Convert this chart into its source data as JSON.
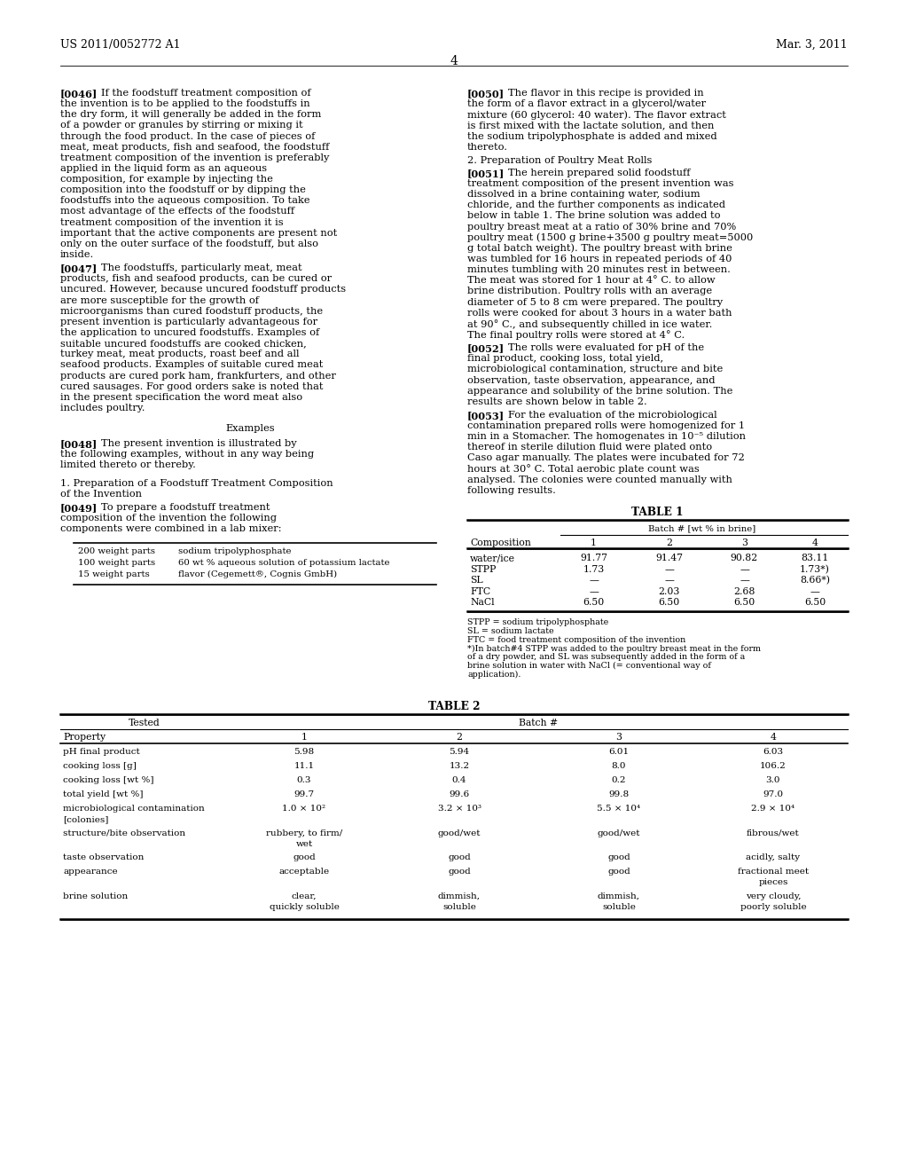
{
  "background_color": "#ffffff",
  "header_left": "US 2011/0052772 A1",
  "header_right": "Mar. 3, 2011",
  "page_number": "4",
  "recipe_box": [
    [
      "200 weight parts",
      "sodium tripolyphosphate"
    ],
    [
      "100 weight parts",
      "60 wt % aqueous solution of potassium lactate"
    ],
    [
      "15 weight parts",
      "flavor (Cegemett®, Cognis GmbH)"
    ]
  ],
  "table1_rows": [
    [
      "water/ice",
      "91.77",
      "91.47",
      "90.82",
      "83.11"
    ],
    [
      "STPP",
      "1.73",
      "—",
      "—",
      "1.73*)"
    ],
    [
      "SL",
      "—",
      "—",
      "—",
      "8.66*)"
    ],
    [
      "FTC",
      "—",
      "2.03",
      "2.68",
      "—"
    ],
    [
      "NaCl",
      "6.50",
      "6.50",
      "6.50",
      "6.50"
    ]
  ],
  "table1_footnotes": [
    "STPP = sodium tripolyphosphate",
    "SL = sodium lactate",
    "FTC = food treatment composition of the invention",
    "*)In batch#4 STPP was added to the poultry breast meat in the form of a dry powder, and SL was subsequently added in the form of a brine solution in water with NaCl (= conventional way of application)."
  ],
  "table2_rows": [
    [
      "pH final product",
      "5.98",
      "5.94",
      "6.01",
      "6.03"
    ],
    [
      "cooking loss [g]",
      "11.1",
      "13.2",
      "8.0",
      "106.2"
    ],
    [
      "cooking loss [wt %]",
      "0.3",
      "0.4",
      "0.2",
      "3.0"
    ],
    [
      "total yield [wt %]",
      "99.7",
      "99.6",
      "99.8",
      "97.0"
    ],
    [
      "microbiological contamination\n[colonies]",
      "1.0 × 10²",
      "3.2 × 10³",
      "5.5 × 10⁴",
      "2.9 × 10⁴"
    ],
    [
      "structure/bite observation",
      "rubbery, to firm/\nwet",
      "good/wet",
      "good/wet",
      "fibrous/wet"
    ],
    [
      "taste observation",
      "good",
      "good",
      "good",
      "acidly, salty"
    ],
    [
      "appearance",
      "acceptable",
      "good",
      "good",
      "fractional meet\npieces"
    ],
    [
      "brine solution",
      "clear,\nquickly soluble",
      "dimmish,\nsoluble",
      "dimmish,\nsoluble",
      "very cloudy,\npoorly soluble"
    ]
  ]
}
